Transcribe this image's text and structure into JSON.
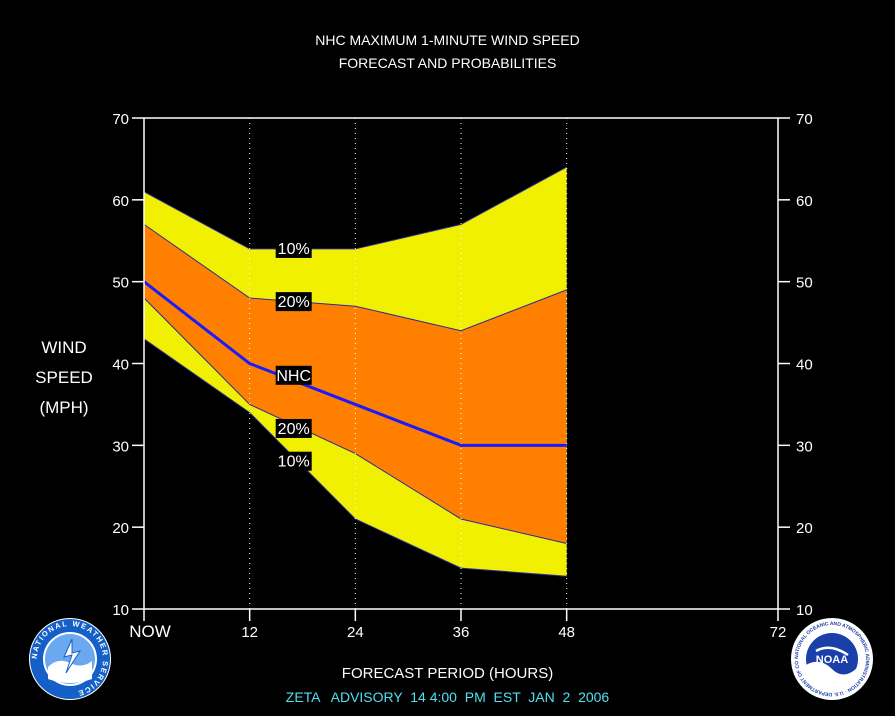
{
  "title": {
    "line1": "NHC MAXIMUM 1-MINUTE WIND SPEED",
    "line2": "FORECAST AND PROBABILITIES"
  },
  "ylabel_lines": [
    "WIND",
    "SPEED",
    "(MPH)"
  ],
  "xlabel": "FORECAST PERIOD (HOURS)",
  "footer": "ZETA   ADVISORY  14 4:00  PM  EST  JAN  2  2006",
  "logos": {
    "left": {
      "name": "National Weather Service",
      "ring_text": "NATIONAL WEATHER SERVICE"
    },
    "right": {
      "name": "NOAA",
      "center_text": "NOAA",
      "ring_text": "NATIONAL OCEANIC AND ATMOSPHERIC ADMINISTRATION · U.S. DEPARTMENT OF COMMERCE"
    }
  },
  "colors": {
    "background": "#000000",
    "band_10": "#f0f000",
    "band_20": "#ff8000",
    "nhc_line": "#1a1aff",
    "axis": "#ffffff",
    "footer": "#4fe0f0"
  },
  "chart_data": {
    "type": "area",
    "title": "NHC MAXIMUM 1-MINUTE WIND SPEED FORECAST AND PROBABILITIES",
    "xlabel": "FORECAST PERIOD (HOURS)",
    "ylabel": "WIND SPEED (MPH)",
    "xlim": [
      0,
      72
    ],
    "ylim": [
      10,
      70
    ],
    "x_ticks": [
      0,
      12,
      24,
      36,
      48,
      72
    ],
    "x_tick_labels": [
      "NOW",
      "12",
      "24",
      "36",
      "48",
      "72"
    ],
    "y_ticks": [
      10,
      20,
      30,
      40,
      50,
      60,
      70
    ],
    "gridlines_x": [
      12,
      24,
      36,
      48
    ],
    "x": [
      0,
      12,
      24,
      36,
      48
    ],
    "series": [
      {
        "name": "10%",
        "role": "upper",
        "values": [
          61,
          54,
          54,
          57,
          64
        ]
      },
      {
        "name": "20%",
        "role": "upper",
        "values": [
          57,
          48,
          47,
          44,
          49
        ]
      },
      {
        "name": "NHC",
        "role": "forecast",
        "values": [
          50,
          40,
          35,
          30,
          30
        ]
      },
      {
        "name": "20%",
        "role": "lower",
        "values": [
          48,
          35,
          29,
          21,
          18
        ]
      },
      {
        "name": "10%",
        "role": "lower",
        "values": [
          43,
          34,
          21,
          15,
          14
        ]
      }
    ],
    "band_labels": [
      {
        "text": "10%",
        "x": 17,
        "y": 54
      },
      {
        "text": "20%",
        "x": 17,
        "y": 47.5
      },
      {
        "text": "NHC",
        "x": 17,
        "y": 38.5
      },
      {
        "text": "20%",
        "x": 17,
        "y": 32
      },
      {
        "text": "10%",
        "x": 17,
        "y": 28
      }
    ]
  }
}
